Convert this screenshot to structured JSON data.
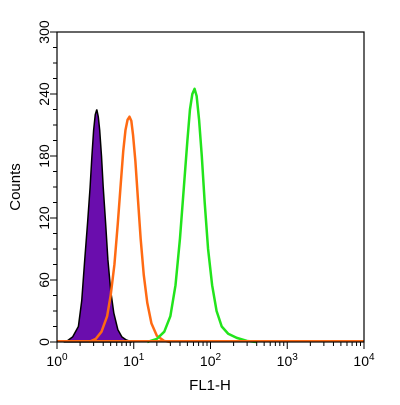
{
  "chart_data": {
    "type": "area",
    "xlabel": "FL1-H",
    "ylabel": "Counts",
    "xscale": "log",
    "xlim": [
      1,
      10000
    ],
    "ylim": [
      0,
      300
    ],
    "grid": false,
    "legend": "none",
    "x_ticks": [
      {
        "value": 1,
        "base": "10",
        "exp": "0"
      },
      {
        "value": 10,
        "base": "10",
        "exp": "1"
      },
      {
        "value": 100,
        "base": "10",
        "exp": "2"
      },
      {
        "value": 1000,
        "base": "10",
        "exp": "3"
      },
      {
        "value": 10000,
        "base": "10",
        "exp": "4"
      }
    ],
    "y_ticks": [
      {
        "value": 0,
        "label": "0"
      },
      {
        "value": 60,
        "label": "60"
      },
      {
        "value": 120,
        "label": "120"
      },
      {
        "value": 180,
        "label": "180"
      },
      {
        "value": 240,
        "label": "240"
      },
      {
        "value": 300,
        "label": "300"
      }
    ],
    "series": [
      {
        "color": "#000000",
        "fill": "#6a0dad",
        "filled": true,
        "points": [
          [
            1.3,
            0
          ],
          [
            1.6,
            5
          ],
          [
            1.9,
            15
          ],
          [
            2.1,
            40
          ],
          [
            2.3,
            80
          ],
          [
            2.5,
            115
          ],
          [
            2.7,
            150
          ],
          [
            2.85,
            180
          ],
          [
            3.0,
            205
          ],
          [
            3.15,
            220
          ],
          [
            3.3,
            225
          ],
          [
            3.45,
            218
          ],
          [
            3.6,
            205
          ],
          [
            3.8,
            180
          ],
          [
            4.0,
            150
          ],
          [
            4.3,
            115
          ],
          [
            4.6,
            80
          ],
          [
            5.0,
            50
          ],
          [
            5.5,
            28
          ],
          [
            6.2,
            12
          ],
          [
            7.0,
            5
          ],
          [
            8.0,
            2
          ],
          [
            9.5,
            0
          ]
        ]
      },
      {
        "color": "#ff6a13",
        "filled": false,
        "points": [
          [
            2.6,
            0
          ],
          [
            3.2,
            3
          ],
          [
            3.8,
            10
          ],
          [
            4.5,
            25
          ],
          [
            5.0,
            45
          ],
          [
            5.6,
            75
          ],
          [
            6.2,
            115
          ],
          [
            6.8,
            155
          ],
          [
            7.3,
            185
          ],
          [
            7.8,
            205
          ],
          [
            8.3,
            215
          ],
          [
            8.8,
            218
          ],
          [
            9.3,
            214
          ],
          [
            9.8,
            200
          ],
          [
            10.5,
            175
          ],
          [
            11.3,
            140
          ],
          [
            12.3,
            100
          ],
          [
            13.5,
            65
          ],
          [
            15,
            38
          ],
          [
            17,
            18
          ],
          [
            20,
            6
          ],
          [
            25,
            1
          ],
          [
            30,
            0
          ]
        ]
      },
      {
        "color": "#22e41c",
        "filled": false,
        "points": [
          [
            15,
            0
          ],
          [
            20,
            3
          ],
          [
            25,
            10
          ],
          [
            30,
            25
          ],
          [
            35,
            55
          ],
          [
            40,
            100
          ],
          [
            45,
            150
          ],
          [
            50,
            195
          ],
          [
            54,
            225
          ],
          [
            58,
            240
          ],
          [
            62,
            245
          ],
          [
            66,
            238
          ],
          [
            71,
            215
          ],
          [
            77,
            180
          ],
          [
            84,
            135
          ],
          [
            93,
            90
          ],
          [
            105,
            55
          ],
          [
            120,
            30
          ],
          [
            140,
            15
          ],
          [
            170,
            8
          ],
          [
            220,
            4
          ],
          [
            300,
            1
          ],
          [
            400,
            0
          ]
        ]
      }
    ]
  }
}
